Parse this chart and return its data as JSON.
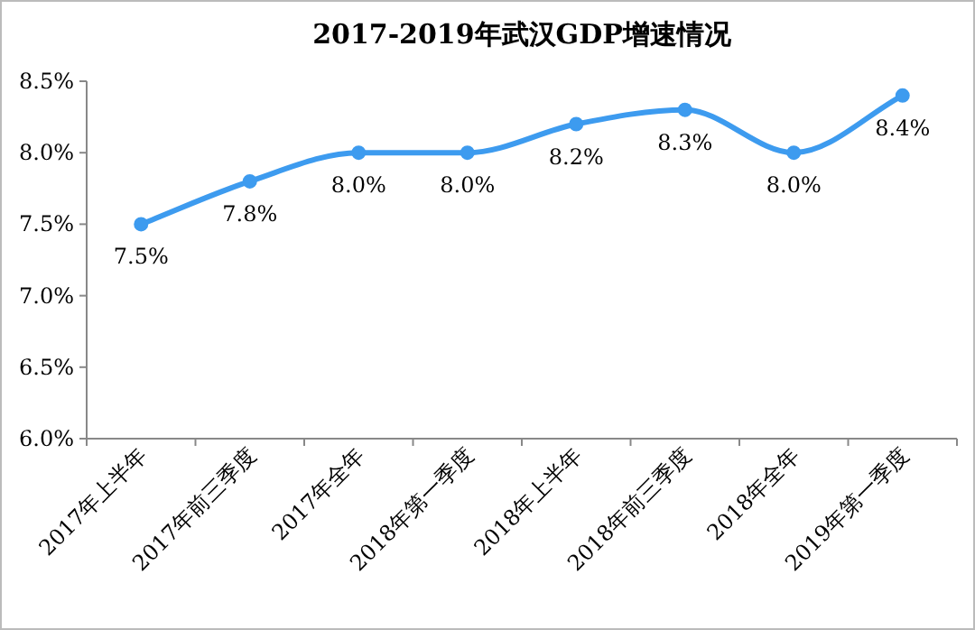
{
  "chart_data": {
    "type": "line",
    "title": "2017-2019年武汉GDP增速情况",
    "categories": [
      "2017年上半年",
      "2017年前三季度",
      "2017年全年",
      "2018年第一季度",
      "2018年上半年",
      "2018年前三季度",
      "2018年全年",
      "2019年第一季度"
    ],
    "series": [
      {
        "color": "#3d9bef",
        "values": [
          7.5,
          7.8,
          8.0,
          8.0,
          8.2,
          8.3,
          8.0,
          8.4
        ],
        "value_labels": [
          "7.5%",
          "7.8%",
          "8.0%",
          "8.0%",
          "8.2%",
          "8.3%",
          "8.0%",
          "8.4%"
        ]
      }
    ],
    "ylim": [
      6.0,
      8.5
    ],
    "yticks": [
      {
        "value": 6.0,
        "label": "6.0%"
      },
      {
        "value": 6.5,
        "label": "6.5%"
      },
      {
        "value": 7.0,
        "label": "7.0%"
      },
      {
        "value": 7.5,
        "label": "7.5%"
      },
      {
        "value": 8.0,
        "label": "8.0%"
      },
      {
        "value": 8.5,
        "label": "8.5%"
      }
    ],
    "marker": "circle",
    "line_style": "solid"
  }
}
